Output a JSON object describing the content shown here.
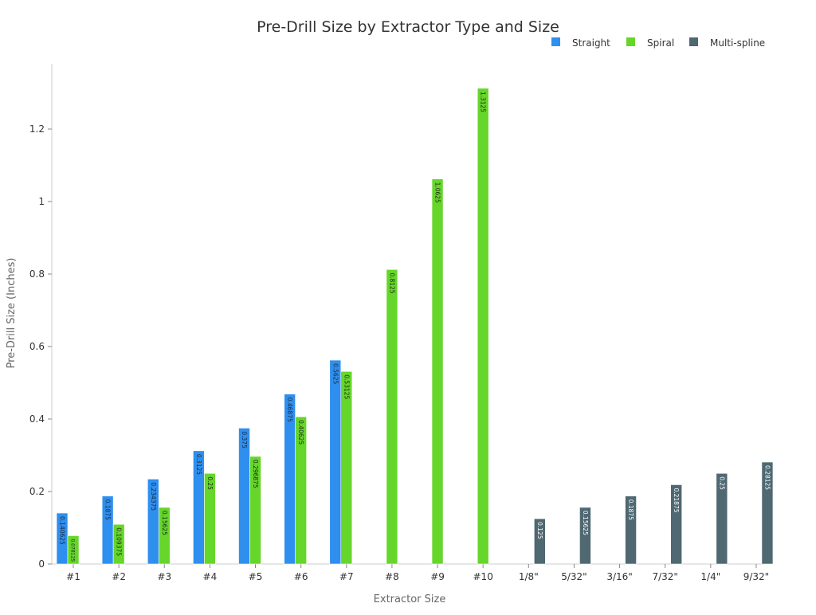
{
  "chart_data": {
    "type": "bar",
    "title": "Pre-Drill Size by Extractor Type and Size",
    "xlabel": "Extractor Size",
    "ylabel": "Pre-Drill Size (Inches)",
    "ylim": [
      0,
      1.38
    ],
    "yticks": [
      0,
      0.2,
      0.4,
      0.6,
      0.8,
      1,
      1.2
    ],
    "ytick_labels": [
      "0",
      "0.2",
      "0.4",
      "0.6",
      "0.8",
      "1",
      "1.2"
    ],
    "grid": false,
    "legend_position": "top-right",
    "categories": [
      "#1",
      "#2",
      "#3",
      "#4",
      "#5",
      "#6",
      "#7",
      "#8",
      "#9",
      "#10",
      "1/8\"",
      "5/32\"",
      "3/16\"",
      "7/32\"",
      "1/4\"",
      "9/32\""
    ],
    "series": [
      {
        "name": "Straight",
        "color": "#2f8fef",
        "label_color": "#1a2a3a",
        "values": [
          0.140625,
          0.1875,
          0.234375,
          0.3125,
          0.375,
          0.46875,
          0.5625,
          null,
          null,
          null,
          null,
          null,
          null,
          null,
          null,
          null
        ]
      },
      {
        "name": "Spiral",
        "color": "#66d62a",
        "label_color": "#1a2a1a",
        "values": [
          0.078125,
          0.109375,
          0.15625,
          0.25,
          0.296875,
          0.40625,
          0.53125,
          0.8125,
          1.0625,
          1.3125,
          null,
          null,
          null,
          null,
          null,
          null
        ]
      },
      {
        "name": "Multi-spline",
        "color": "#4f6872",
        "label_color": "#ffffff",
        "values": [
          null,
          null,
          null,
          null,
          null,
          null,
          null,
          null,
          null,
          null,
          0.125,
          0.15625,
          0.1875,
          0.21875,
          0.25,
          0.28125
        ]
      }
    ]
  }
}
